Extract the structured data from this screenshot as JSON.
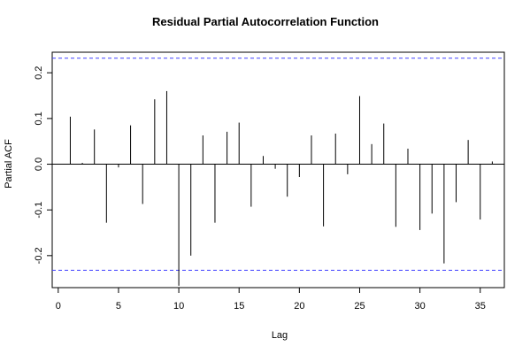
{
  "chart_data": {
    "type": "bar",
    "title": "Residual Partial Autocorrelation Function",
    "xlabel": "Lag",
    "ylabel": "Partial ACF",
    "xlim": [
      -0.5,
      37
    ],
    "ylim": [
      -0.27,
      0.245
    ],
    "x_ticks": [
      0,
      5,
      10,
      15,
      20,
      25,
      30,
      35
    ],
    "y_ticks": [
      -0.2,
      -0.1,
      0.0,
      0.1,
      0.2
    ],
    "y_tick_labels": [
      "-0.2",
      "-0.1",
      "0.0",
      "0.1",
      "0.2"
    ],
    "confidence_bound": 0.232,
    "confidence_color": "#4040ff",
    "x": [
      1,
      2,
      3,
      4,
      5,
      6,
      7,
      8,
      9,
      10,
      11,
      12,
      13,
      14,
      15,
      16,
      17,
      18,
      19,
      20,
      21,
      22,
      23,
      24,
      25,
      26,
      27,
      28,
      29,
      30,
      31,
      32,
      33,
      34,
      35,
      36
    ],
    "values": [
      0.104,
      0.003,
      0.076,
      -0.128,
      -0.007,
      0.085,
      -0.087,
      0.142,
      0.16,
      -0.266,
      -0.2,
      0.063,
      -0.128,
      0.071,
      0.091,
      -0.093,
      0.018,
      -0.01,
      -0.071,
      -0.028,
      0.063,
      -0.136,
      0.067,
      -0.022,
      0.149,
      0.044,
      0.089,
      -0.137,
      0.034,
      -0.144,
      -0.108,
      -0.217,
      -0.083,
      0.053,
      -0.121,
      0.006
    ]
  }
}
